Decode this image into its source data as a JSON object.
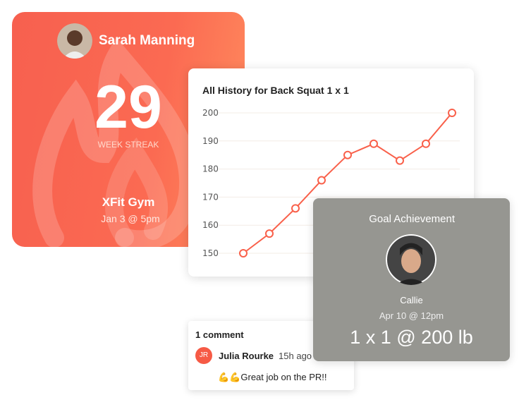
{
  "streak_card": {
    "name": "Sarah Manning",
    "count": "29",
    "label": "WEEK STREAK",
    "gym": "XFit Gym",
    "date": "Jan 3 @ 5pm"
  },
  "chart_data": {
    "type": "line",
    "title": "All History for Back Squat 1 x 1",
    "y": [
      150,
      157,
      166,
      176,
      185,
      189,
      183,
      189,
      200
    ],
    "yticks": [
      "150",
      "160",
      "170",
      "180",
      "190",
      "200"
    ],
    "ylim": [
      150,
      200
    ],
    "grid": true,
    "color": "#f9604a"
  },
  "goal_card": {
    "title": "Goal Achievement",
    "name": "Callie",
    "time": "Apr 10 @ 12pm",
    "value": "1 x 1 @ 200 lb"
  },
  "comments": {
    "count_label": "1 comment",
    "items": [
      {
        "initials": "JR",
        "author": "Julia Rourke",
        "time": "15h ago",
        "text": "💪💪Great job on the PR!!"
      }
    ]
  }
}
